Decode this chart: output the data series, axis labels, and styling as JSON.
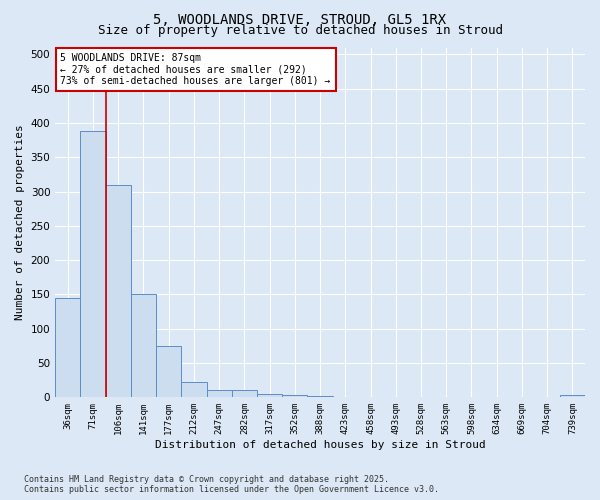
{
  "title": "5, WOODLANDS DRIVE, STROUD, GL5 1RX",
  "subtitle": "Size of property relative to detached houses in Stroud",
  "xlabel": "Distribution of detached houses by size in Stroud",
  "ylabel": "Number of detached properties",
  "bar_labels": [
    "36sqm",
    "71sqm",
    "106sqm",
    "141sqm",
    "177sqm",
    "212sqm",
    "247sqm",
    "282sqm",
    "317sqm",
    "352sqm",
    "388sqm",
    "423sqm",
    "458sqm",
    "493sqm",
    "528sqm",
    "563sqm",
    "598sqm",
    "634sqm",
    "669sqm",
    "704sqm",
    "739sqm"
  ],
  "bar_values": [
    145,
    388,
    310,
    150,
    75,
    22,
    10,
    10,
    5,
    3,
    2,
    0,
    0,
    0,
    0,
    0,
    0,
    0,
    0,
    0,
    3
  ],
  "bar_color": "#ccddf0",
  "bar_edge_color": "#5b8dc8",
  "property_line_bin": 1,
  "annotation_title": "5 WOODLANDS DRIVE: 87sqm",
  "annotation_line1": "← 27% of detached houses are smaller (292)",
  "annotation_line2": "73% of semi-detached houses are larger (801) →",
  "annotation_box_color": "#ffffff",
  "annotation_box_edge": "#cc0000",
  "property_line_color": "#cc0000",
  "ylim": [
    0,
    510
  ],
  "yticks": [
    0,
    50,
    100,
    150,
    200,
    250,
    300,
    350,
    400,
    450,
    500
  ],
  "footer": "Contains HM Land Registry data © Crown copyright and database right 2025.\nContains public sector information licensed under the Open Government Licence v3.0.",
  "bg_color": "#dce8f5",
  "title_fontsize": 10,
  "subtitle_fontsize": 9
}
